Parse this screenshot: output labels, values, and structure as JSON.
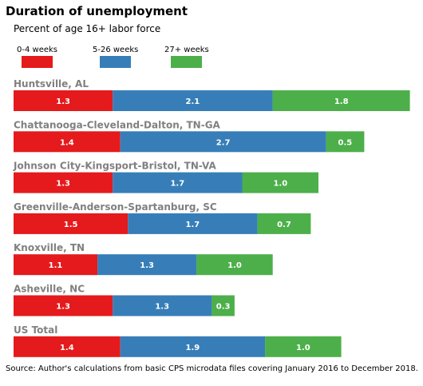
{
  "chart_data": {
    "type": "bar",
    "orientation": "horizontal",
    "stacked": true,
    "title": "Duration of unemployment",
    "subtitle": "Percent of age 16+ labor force",
    "source": "Source: Author's calculations from basic CPS microdata files covering January 2016 to December 2018.",
    "legend_position": "top-left",
    "grid": false,
    "categories": [
      "Huntsville, AL",
      "Chattanooga-Cleveland-Dalton, TN-GA",
      "Johnson City-Kingsport-Bristol, TN-VA",
      "Greenville-Anderson-Spartanburg, SC",
      "Knoxville, TN",
      "Asheville, NC",
      "US Total"
    ],
    "series": [
      {
        "name": "0-4 weeks",
        "color": "#e41a1c",
        "values": [
          1.3,
          1.4,
          1.3,
          1.5,
          1.1,
          1.3,
          1.4
        ]
      },
      {
        "name": "5-26 weeks",
        "color": "#377eb8",
        "values": [
          2.1,
          2.7,
          1.7,
          1.7,
          1.3,
          1.3,
          1.9
        ]
      },
      {
        "name": "27+ weeks",
        "color": "#4daf4a",
        "values": [
          1.8,
          0.5,
          1.0,
          0.7,
          1.0,
          0.3,
          1.0
        ]
      }
    ]
  }
}
